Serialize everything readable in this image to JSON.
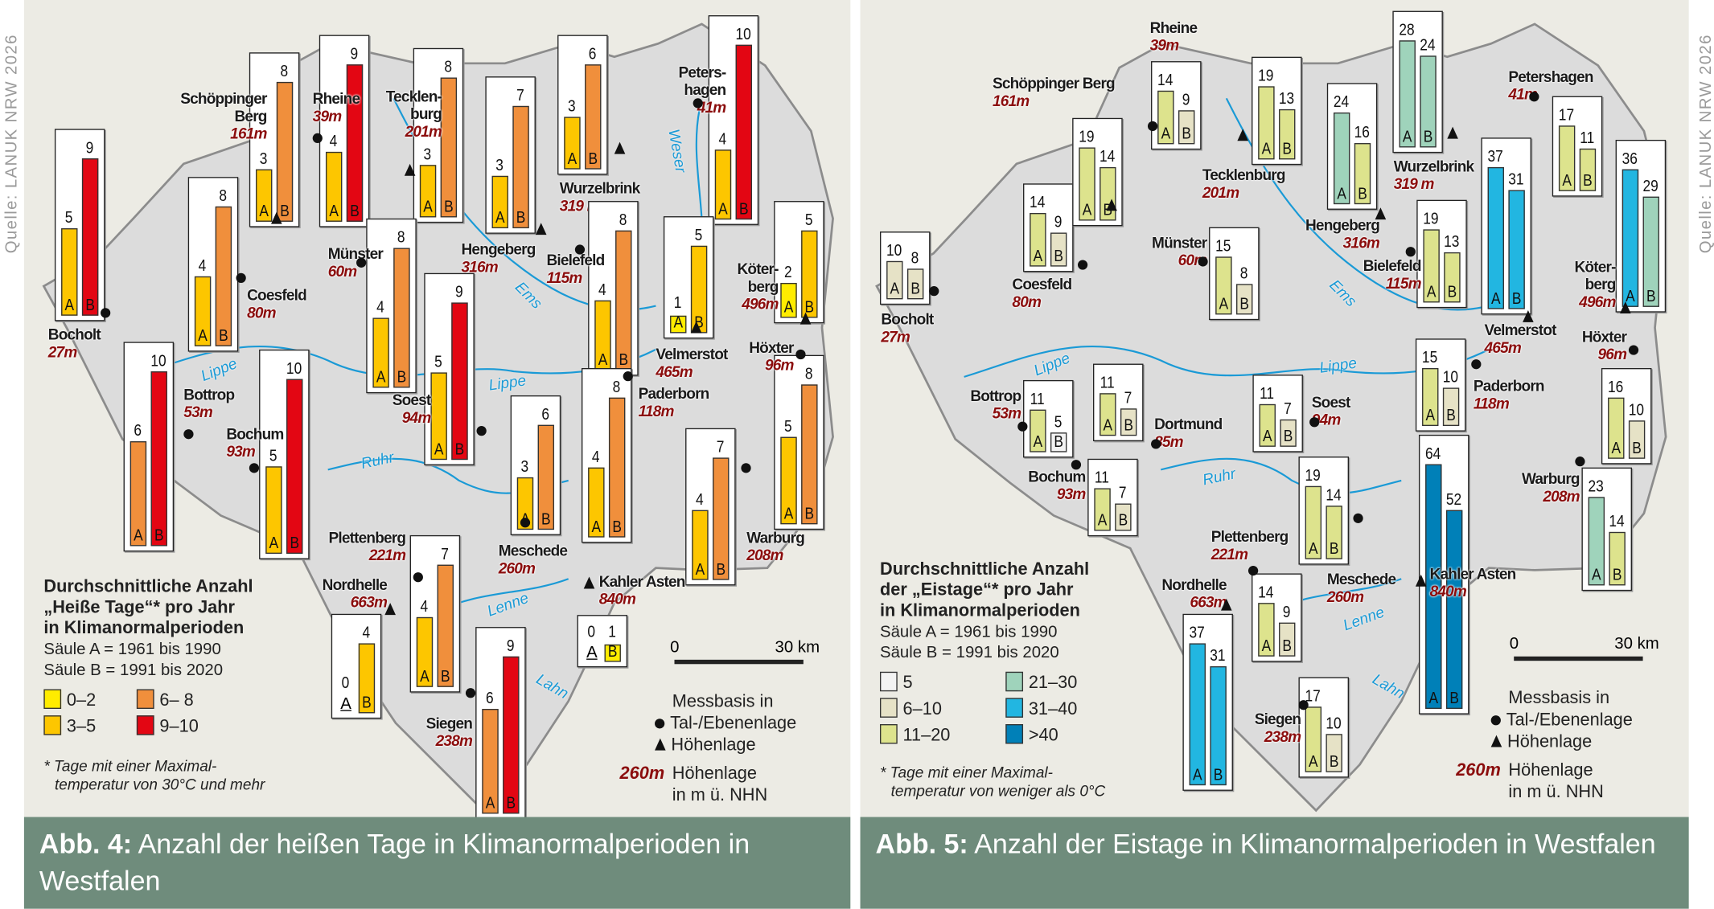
{
  "source_label": "Quelle: LANUK NRW 2026",
  "maps": [
    {
      "id": "heat",
      "caption": {
        "prefix": "Abb. 4:",
        "text": "Anzahl der heißen Tage in Klimanormalperioden in Westfalen"
      },
      "legend": {
        "title": [
          "Durchschnittliche Anzahl",
          "„Heiße Tage“* pro Jahr",
          "in Klimanormalperioden"
        ],
        "periods": [
          "Säule A = 1961 bis 1990",
          "Säule B = 1991 bis 2020"
        ],
        "classes": [
          {
            "label": "0–2",
            "max": 2,
            "color": "#ffec00"
          },
          {
            "label": "3–5",
            "max": 5,
            "color": "#fdc600"
          },
          {
            "label": "6– 8",
            "max": 8,
            "color": "#f08f3c"
          },
          {
            "label": "9–10",
            "max": 10,
            "color": "#e30613"
          }
        ],
        "footnote": [
          "* Tage mit einer Maximal-",
          "temperatur von 30°C und mehr"
        ]
      },
      "messbasis": {
        "title": "Messbasis in",
        "valley": "Tal-/Ebenenlage",
        "height": "Höhenlage",
        "elev_sample": "260m",
        "elev_text": [
          "Höhenlage",
          "in m ü. NHN"
        ]
      },
      "scale": {
        "zero": "0",
        "end": "30",
        "unit": "km"
      },
      "rivers": [
        "Lippe",
        "Lippe",
        "Ems",
        "Ruhr",
        "Lenne",
        "Lahn",
        "Weser"
      ],
      "stations": [
        {
          "name": [
            "Bocholt"
          ],
          "elevation": "27m",
          "type": "valley",
          "A": 5,
          "B": 9
        },
        {
          "name": [
            "Coesfeld"
          ],
          "elevation": "80m",
          "type": "valley",
          "A": 4,
          "B": 8
        },
        {
          "name": [
            "Schöppinger",
            "Berg"
          ],
          "elevation": "161m",
          "type": "height",
          "A": 3,
          "B": 8
        },
        {
          "name": [
            "Rheine"
          ],
          "elevation": "39m",
          "type": "valley",
          "A": 4,
          "B": 9
        },
        {
          "name": [
            "Tecklen-",
            "burg"
          ],
          "elevation": "201m",
          "type": "height",
          "A": 3,
          "B": 8
        },
        {
          "name": [
            "Hengeberg"
          ],
          "elevation": "316m",
          "type": "height",
          "A": 3,
          "B": 7
        },
        {
          "name": [
            "Wurzelbrink"
          ],
          "elevation": "319 m",
          "type": "height",
          "A": 3,
          "B": 6
        },
        {
          "name": [
            "Peters-",
            "hagen"
          ],
          "elevation": "41m",
          "type": "valley",
          "A": 4,
          "B": 10
        },
        {
          "name": [
            "Velmerstot"
          ],
          "elevation": "465m",
          "type": "height",
          "A": 1,
          "B": 5
        },
        {
          "name": [
            "Köter-",
            "berg"
          ],
          "elevation": "496m",
          "type": "height",
          "A": 2,
          "B": 5
        },
        {
          "name": [
            "Münster"
          ],
          "elevation": "60m",
          "type": "valley",
          "A": 4,
          "B": 8
        },
        {
          "name": [
            "Bielefeld"
          ],
          "elevation": "115m",
          "type": "valley",
          "A": 4,
          "B": 8
        },
        {
          "name": [
            "Bottrop"
          ],
          "elevation": "53m",
          "type": "valley",
          "A": 6,
          "B": 10
        },
        {
          "name": [
            "Bochum"
          ],
          "elevation": "93m",
          "type": "valley",
          "A": 5,
          "B": 10
        },
        {
          "name": [
            "Soest"
          ],
          "elevation": "94m",
          "type": "valley",
          "A": 5,
          "B": 9
        },
        {
          "name": [
            "Meschede"
          ],
          "elevation": "260m",
          "type": "valley",
          "A": 3,
          "B": 6
        },
        {
          "name": [
            "Paderborn"
          ],
          "elevation": "118m",
          "type": "valley",
          "A": 4,
          "B": 8
        },
        {
          "name": [
            "Warburg"
          ],
          "elevation": "208m",
          "type": "valley",
          "A": 4,
          "B": 7
        },
        {
          "name": [
            "Höxter"
          ],
          "elevation": "96m",
          "type": "valley",
          "A": 5,
          "B": 8
        },
        {
          "name": [
            "Plettenberg"
          ],
          "elevation": "221m",
          "type": "valley",
          "A": 4,
          "B": 7
        },
        {
          "name": [
            "Nordhelle"
          ],
          "elevation": "663m",
          "type": "height",
          "A": 0,
          "B": 4
        },
        {
          "name": [
            "Kahler Asten"
          ],
          "elevation": "840m",
          "type": "height",
          "A": 0,
          "B": 1
        },
        {
          "name": [
            "Siegen"
          ],
          "elevation": "238m",
          "type": "valley",
          "A": 6,
          "B": 9
        }
      ]
    },
    {
      "id": "ice",
      "caption": {
        "prefix": "Abb. 5:",
        "text": "Anzahl der Eistage in Klimanormalperioden in Westfalen"
      },
      "legend": {
        "title": [
          "Durchschnittliche Anzahl",
          "der „Eistage“* pro Jahr",
          "in Klimanormalperioden"
        ],
        "periods": [
          "Säule A = 1961 bis 1990",
          "Säule B = 1991 bis 2020"
        ],
        "classes": [
          {
            "label": "5",
            "max": 5,
            "color": "#f3f3f3"
          },
          {
            "label": "6–10",
            "max": 10,
            "color": "#e6e2c6"
          },
          {
            "label": "11–20",
            "max": 20,
            "color": "#dde38d"
          },
          {
            "label": "21–30",
            "max": 30,
            "color": "#9fd3bb"
          },
          {
            "label": "31–40",
            "max": 40,
            "color": "#22b6e1"
          },
          {
            "label": ">40",
            "max": 999,
            "color": "#0080b8"
          }
        ],
        "footnote": [
          "* Tage mit einer Maximal-",
          "temperatur von weniger als 0°C"
        ]
      },
      "messbasis": {
        "title": "Messbasis in",
        "valley": "Tal-/Ebenenlage",
        "height": "Höhenlage",
        "elev_sample": "260m",
        "elev_text": [
          "Höhenlage",
          "in m ü. NHN"
        ]
      },
      "scale": {
        "zero": "0",
        "end": "30",
        "unit": "km"
      },
      "rivers": [
        "Lippe",
        "Lippe",
        "Ems",
        "Ruhr",
        "Lenne",
        "Lahn"
      ],
      "stations": [
        {
          "name": [
            "Bocholt"
          ],
          "elevation": "27m",
          "type": "valley",
          "A": 10,
          "B": 8
        },
        {
          "name": [
            "Coesfeld"
          ],
          "elevation": "80m",
          "type": "valley",
          "A": 14,
          "B": 9
        },
        {
          "name": [
            "Schöppinger Berg"
          ],
          "elevation": "161m",
          "type": "height",
          "A": 19,
          "B": 14
        },
        {
          "name": [
            "Rheine"
          ],
          "elevation": "39m",
          "type": "valley",
          "A": 14,
          "B": 9
        },
        {
          "name": [
            "Tecklenburg"
          ],
          "elevation": "201m",
          "type": "height",
          "A": 19,
          "B": 13
        },
        {
          "name": [
            "Hengeberg"
          ],
          "elevation": "316m",
          "type": "height",
          "A": 24,
          "B": 16
        },
        {
          "name": [
            "Wurzelbrink"
          ],
          "elevation": "319 m",
          "type": "height",
          "A": 28,
          "B": 24
        },
        {
          "name": [
            "Petershagen"
          ],
          "elevation": "41m",
          "type": "valley",
          "A": 17,
          "B": 11
        },
        {
          "name": [
            "Velmerstot"
          ],
          "elevation": "465m",
          "type": "height",
          "A": 37,
          "B": 31
        },
        {
          "name": [
            "Köter-",
            "berg"
          ],
          "elevation": "496m",
          "type": "height",
          "A": 36,
          "B": 29
        },
        {
          "name": [
            "Münster"
          ],
          "elevation": "60m",
          "type": "valley",
          "A": 15,
          "B": 8
        },
        {
          "name": [
            "Bielefeld"
          ],
          "elevation": "115m",
          "type": "valley",
          "A": 19,
          "B": 13
        },
        {
          "name": [
            "Bottrop"
          ],
          "elevation": "53m",
          "type": "valley",
          "A": 11,
          "B": 5
        },
        {
          "name": [
            "Dortmund"
          ],
          "elevation": "85m",
          "type": "valley",
          "A": 11,
          "B": 7
        },
        {
          "name": [
            "Soest"
          ],
          "elevation": "94m",
          "type": "valley",
          "A": 11,
          "B": 7
        },
        {
          "name": [
            "Paderborn"
          ],
          "elevation": "118m",
          "type": "valley",
          "A": 15,
          "B": 10
        },
        {
          "name": [
            "Höxter"
          ],
          "elevation": "96m",
          "type": "valley",
          "A": 16,
          "B": 10
        },
        {
          "name": [
            "Bochum"
          ],
          "elevation": "93m",
          "type": "valley",
          "A": 11,
          "B": 7
        },
        {
          "name": [
            "Meschede"
          ],
          "elevation": "260m",
          "type": "valley",
          "A": 19,
          "B": 14
        },
        {
          "name": [
            "Kahler Asten"
          ],
          "elevation": "840m",
          "type": "height",
          "A": 64,
          "B": 52
        },
        {
          "name": [
            "Warburg"
          ],
          "elevation": "208m",
          "type": "valley",
          "A": 23,
          "B": 14
        },
        {
          "name": [
            "Plettenberg"
          ],
          "elevation": "221m",
          "type": "valley",
          "A": 14,
          "B": 9
        },
        {
          "name": [
            "Nordhelle"
          ],
          "elevation": "663m",
          "type": "height",
          "A": 37,
          "B": 31
        },
        {
          "name": [
            "Siegen"
          ],
          "elevation": "238m",
          "type": "valley",
          "A": 17,
          "B": 10
        }
      ]
    }
  ]
}
